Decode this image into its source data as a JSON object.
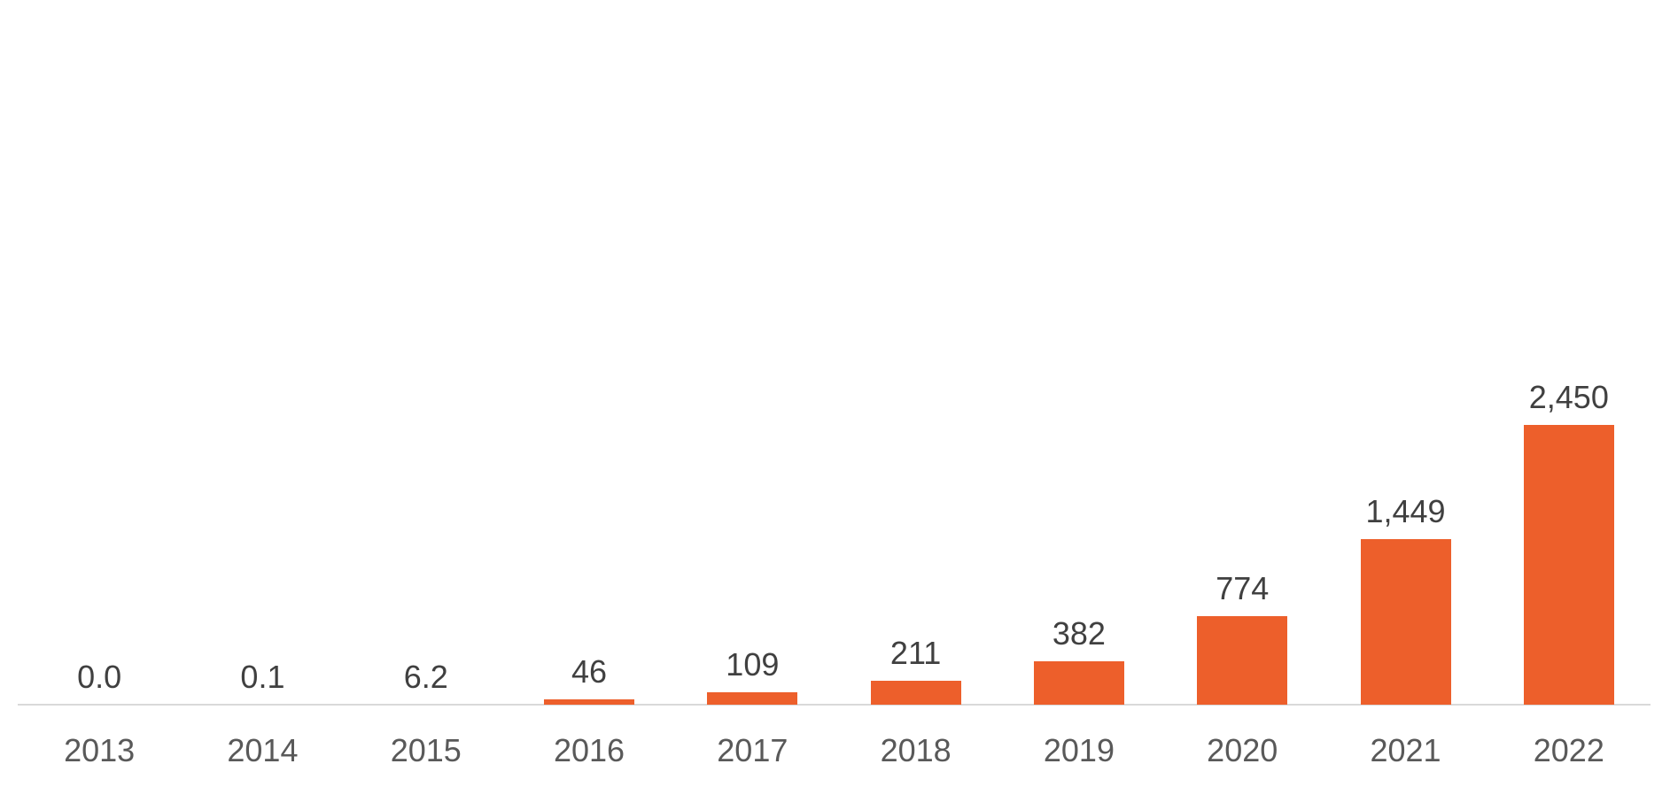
{
  "chart_data": {
    "type": "bar",
    "categories": [
      "2013",
      "2014",
      "2015",
      "2016",
      "2017",
      "2018",
      "2019",
      "2020",
      "2021",
      "2022"
    ],
    "values": [
      0.0,
      0.1,
      6.2,
      46,
      109,
      211,
      382,
      774,
      1449,
      2450
    ],
    "value_labels": [
      "0.0",
      "0.1",
      "6.2",
      "46",
      "109",
      "211",
      "382",
      "774",
      "1,449",
      "2,450"
    ],
    "title": "",
    "xlabel": "",
    "ylabel": "",
    "ylim": [
      0,
      2450
    ],
    "grid": false,
    "legend_position": "none",
    "colors": {
      "bar": "#ed5f2b",
      "axis_line": "#d9d9d9",
      "value_label": "#404040",
      "category_label": "#595959"
    }
  }
}
